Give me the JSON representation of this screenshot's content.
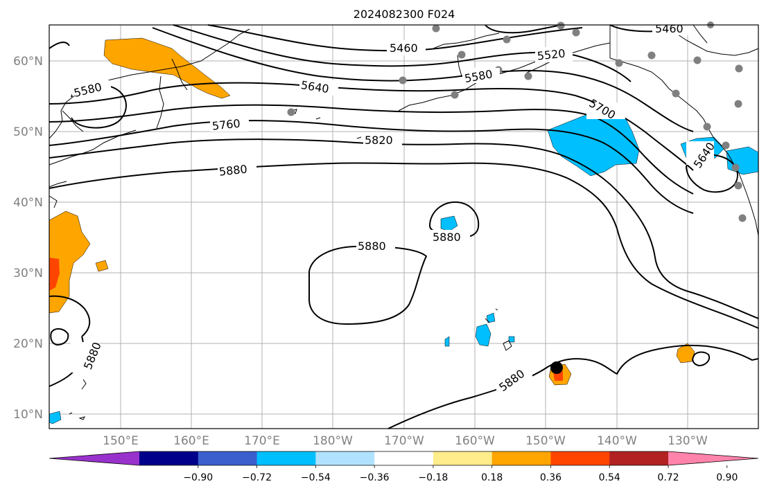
{
  "title": "2024082300 F024",
  "latitude_labels": [
    "60°N",
    "50°N",
    "40°N",
    "30°N",
    "20°N",
    "10°N"
  ],
  "longitude_labels": [
    "150°E",
    "160°E",
    "170°E",
    "180°W",
    "170°W",
    "160°W",
    "150°W",
    "140°W",
    "130°W"
  ],
  "contour_labels": [
    "5460",
    "5460",
    "5520",
    "5580",
    "5580",
    "5640",
    "5640",
    "5700",
    "5760",
    "5820",
    "5880",
    "5880",
    "5880",
    "5880",
    "5880"
  ],
  "colorbar": {
    "colors": [
      "#9932cc",
      "#00008b",
      "#3a5fcd",
      "#00bfff",
      "#b0e2ff",
      "#ffffff",
      "#ffec8b",
      "#ffa500",
      "#ff4500",
      "#b22222",
      "#ff83aa"
    ],
    "tick_labels": [
      "−0.90",
      "−0.72",
      "−0.54",
      "−0.36",
      "−0.18",
      "0.18",
      "0.36",
      "0.54",
      "0.72",
      "0.90"
    ]
  },
  "colors": {
    "positive_shade": "#ffa500",
    "strong_positive": "#ff4500",
    "negative_shade": "#00bfff",
    "contour": "#000000",
    "grid": "#b0b0b0",
    "station_dot": "#808080"
  },
  "icons": [
    "storm-center-marker",
    "station-dot"
  ]
}
